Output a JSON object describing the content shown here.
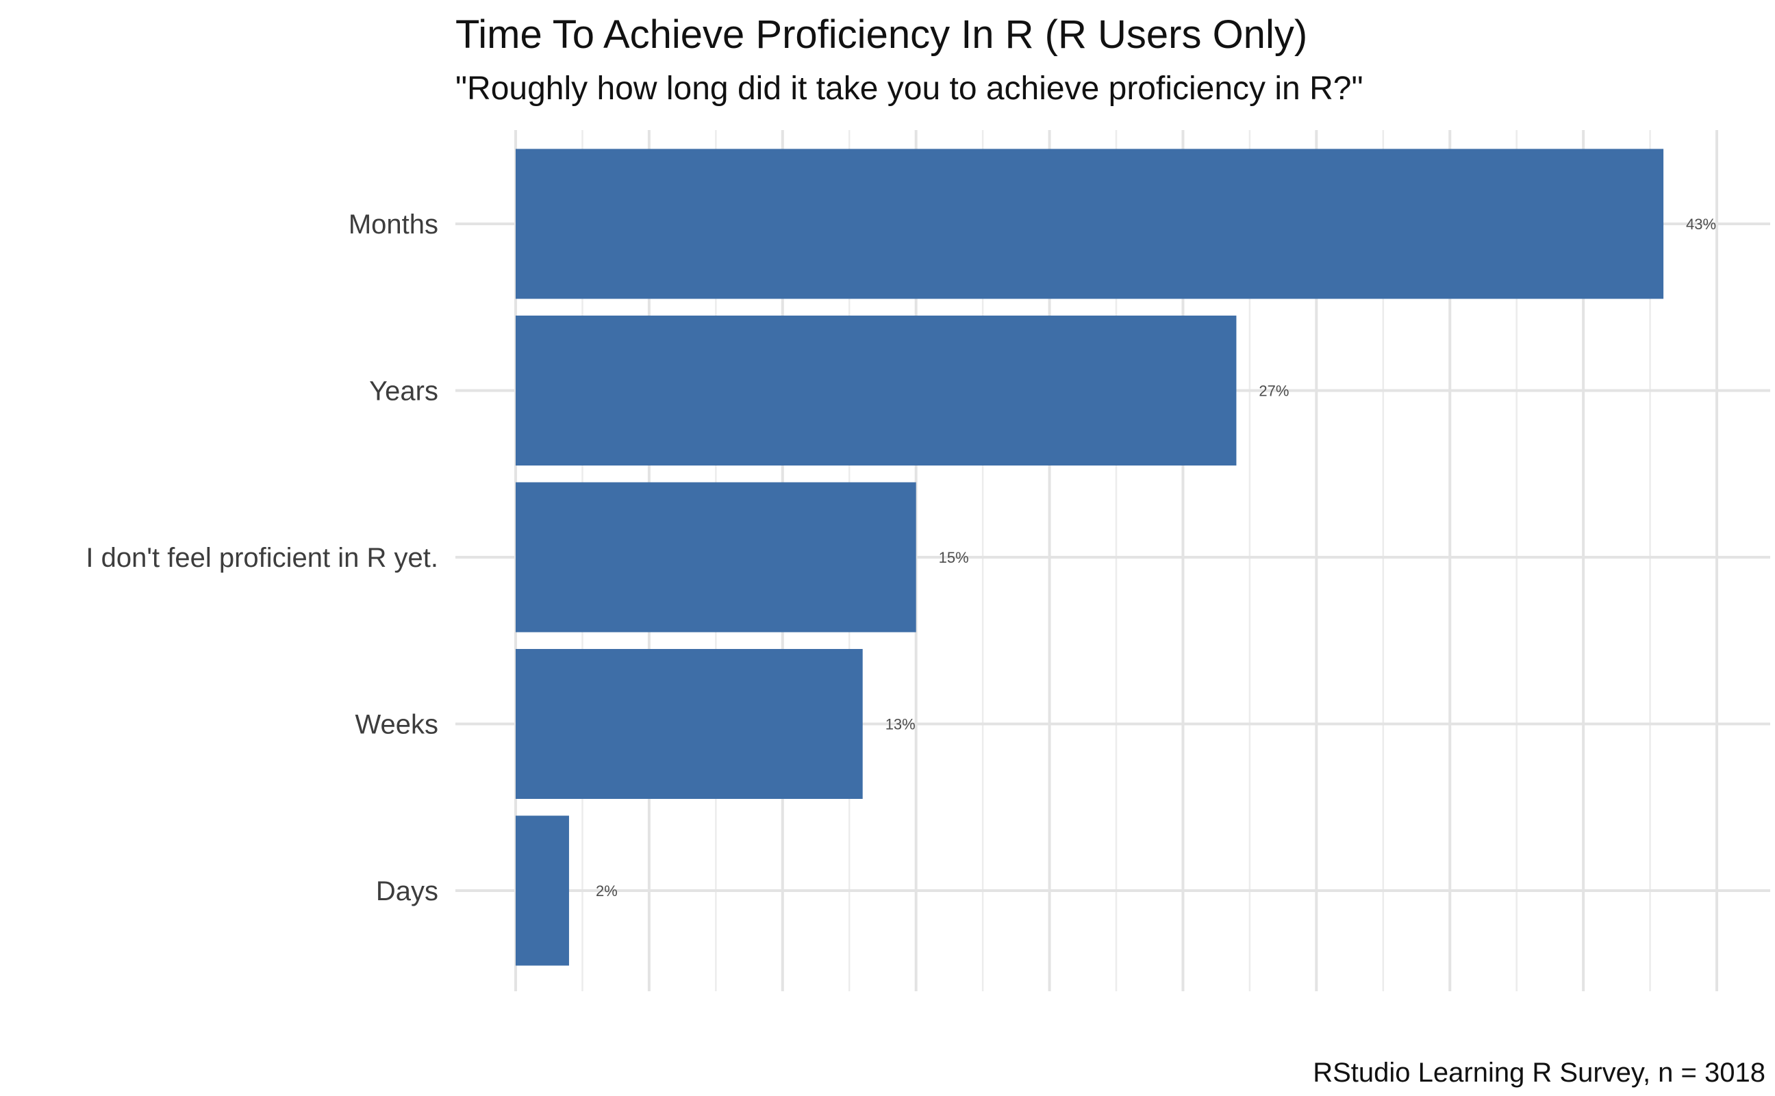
{
  "chart_data": {
    "type": "bar",
    "orientation": "horizontal",
    "title": "Time To Achieve Proficiency In R (R Users Only)",
    "subtitle": "\"Roughly how long did it take you to achieve proficiency in R?\"",
    "caption": "RStudio Learning R Survey, n = 3018",
    "categories": [
      "Months",
      "Years",
      "I don't feel proficient in R yet.",
      "Weeks",
      "Days"
    ],
    "values": [
      43,
      27,
      15,
      13,
      2
    ],
    "labels": [
      "43%",
      "27%",
      "15%",
      "13%",
      "2%"
    ],
    "xlim": [
      0,
      47
    ],
    "grid": true,
    "legend": "none",
    "colors": {
      "bar": "#3e6ea7",
      "grid": "#e3e3e3",
      "text": "#111111",
      "axis_text": "#3d3d3d"
    }
  }
}
